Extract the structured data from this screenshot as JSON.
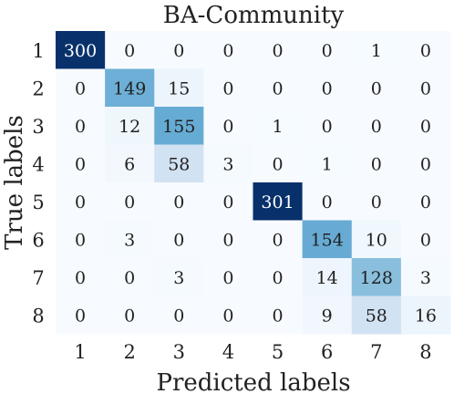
{
  "chart_data": {
    "type": "heatmap",
    "title": "BA-Community",
    "xlabel": "Predicted labels",
    "ylabel": "True labels",
    "x_categories": [
      "1",
      "2",
      "3",
      "4",
      "5",
      "6",
      "7",
      "8"
    ],
    "y_categories": [
      "1",
      "2",
      "3",
      "4",
      "5",
      "6",
      "7",
      "8"
    ],
    "colormap": "Blues",
    "colorbar": false,
    "values": [
      [
        300,
        0,
        0,
        0,
        0,
        0,
        1,
        0
      ],
      [
        0,
        149,
        15,
        0,
        0,
        0,
        0,
        0
      ],
      [
        0,
        12,
        155,
        0,
        1,
        0,
        0,
        0
      ],
      [
        0,
        6,
        58,
        3,
        0,
        1,
        0,
        0
      ],
      [
        0,
        0,
        0,
        0,
        301,
        0,
        0,
        0
      ],
      [
        0,
        3,
        0,
        0,
        0,
        154,
        10,
        0
      ],
      [
        0,
        0,
        3,
        0,
        0,
        14,
        128,
        3
      ],
      [
        0,
        0,
        0,
        0,
        0,
        9,
        58,
        16
      ]
    ]
  }
}
